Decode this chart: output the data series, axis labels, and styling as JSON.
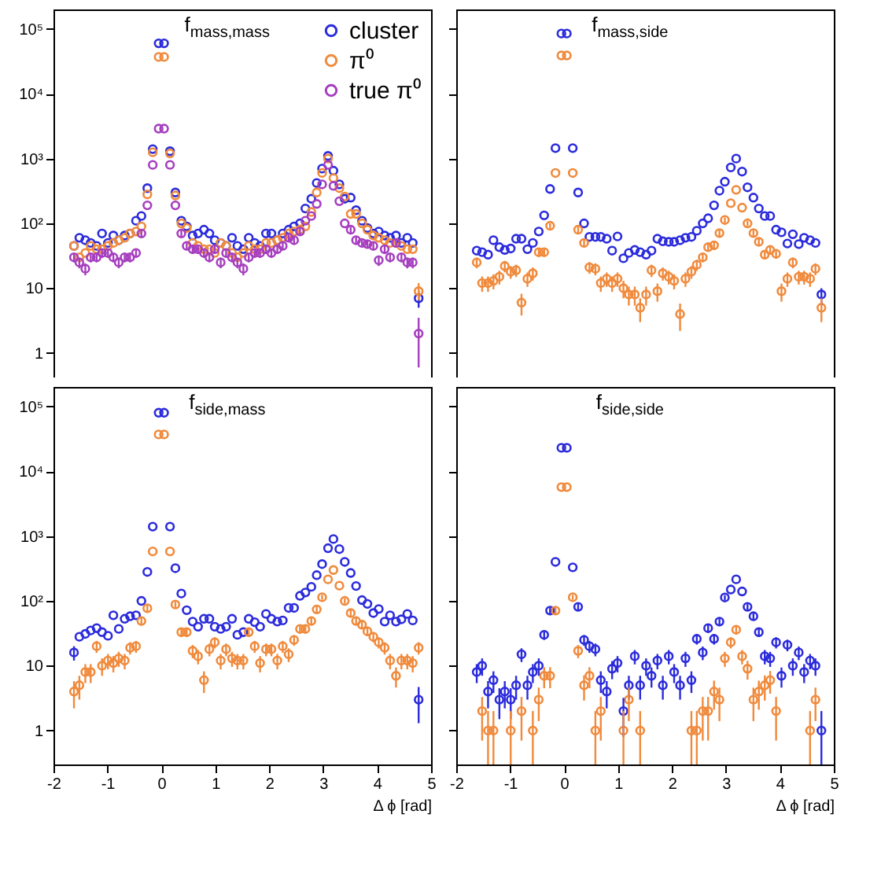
{
  "chart_data": [
    {
      "type": "scatter",
      "title": "f$_{mass,mass}$",
      "marker": "circle",
      "log": true,
      "legend": "top right",
      "tick_labels": "y",
      "xlim": [
        -2,
        5
      ],
      "xticks": [
        -2,
        -1,
        0,
        1,
        2,
        3,
        4,
        5
      ],
      "ylim": [
        0.3,
        200000
      ],
      "yticks": [
        {
          "value": 1,
          "label": "1"
        },
        {
          "value": 10,
          "label": "10"
        },
        {
          "value": 100,
          "label": "10²"
        },
        {
          "value": 1000,
          "label": "10³"
        },
        {
          "value": 10000,
          "label": "10⁴"
        },
        {
          "value": 100000,
          "label": "10⁵"
        }
      ],
      "x": [
        -1.62,
        -1.52,
        -1.41,
        -1.31,
        -1.2,
        -1.1,
        -0.99,
        -0.89,
        -0.79,
        -0.68,
        -0.58,
        -0.47,
        -0.37,
        -0.26,
        -0.16,
        -0.05,
        0.05,
        0.16,
        0.26,
        0.37,
        0.47,
        0.58,
        0.68,
        0.79,
        0.89,
        0.99,
        1.1,
        1.2,
        1.31,
        1.41,
        1.52,
        1.62,
        1.73,
        1.83,
        1.94,
        2.04,
        2.15,
        2.25,
        2.36,
        2.46,
        2.57,
        2.67,
        2.78,
        2.88,
        2.98,
        3.09,
        3.19,
        3.3,
        3.4,
        3.51,
        3.61,
        3.72,
        3.82,
        3.93,
        4.03,
        4.14,
        4.24,
        4.35,
        4.45,
        4.56,
        4.66,
        4.77
      ],
      "series": [
        {
          "name": "cluster",
          "color": "#2b2bdc",
          "values": [
            45,
            60,
            55,
            50,
            45,
            70,
            50,
            65,
            55,
            65,
            70,
            110,
            130,
            350,
            1400,
            60000,
            60000,
            1300,
            300,
            110,
            90,
            65,
            70,
            80,
            70,
            55,
            50,
            45,
            60,
            45,
            40,
            60,
            50,
            45,
            70,
            70,
            55,
            70,
            80,
            90,
            100,
            170,
            240,
            420,
            700,
            1100,
            650,
            400,
            240,
            250,
            160,
            110,
            85,
            70,
            75,
            65,
            60,
            65,
            50,
            60,
            50,
            7
          ],
          "errors": [
            null,
            null,
            null,
            null,
            null,
            null,
            null,
            null,
            null,
            null,
            null,
            null,
            null,
            null,
            null,
            null,
            null,
            null,
            null,
            null,
            null,
            null,
            null,
            null,
            null,
            null,
            null,
            null,
            null,
            null,
            null,
            null,
            null,
            null,
            null,
            null,
            null,
            null,
            null,
            null,
            null,
            null,
            null,
            null,
            null,
            null,
            null,
            null,
            null,
            null,
            null,
            null,
            null,
            null,
            null,
            null,
            null,
            null,
            null,
            null,
            null,
            [
              5,
              9
            ]
          ]
        },
        {
          "name": "π⁰",
          "color": "#f08a3c",
          "values": [
            45,
            30,
            35,
            45,
            40,
            40,
            45,
            50,
            55,
            60,
            70,
            75,
            90,
            280,
            1250,
            37000,
            37000,
            1200,
            270,
            100,
            85,
            50,
            45,
            40,
            40,
            35,
            50,
            45,
            35,
            30,
            35,
            45,
            40,
            40,
            50,
            50,
            55,
            60,
            70,
            75,
            80,
            90,
            150,
            300,
            600,
            1000,
            500,
            350,
            260,
            140,
            140,
            100,
            80,
            65,
            60,
            55,
            50,
            50,
            45,
            40,
            40,
            9
          ],
          "errors": [
            null,
            null,
            null,
            null,
            null,
            null,
            null,
            null,
            null,
            null,
            null,
            null,
            null,
            null,
            null,
            null,
            null,
            null,
            null,
            null,
            null,
            null,
            null,
            null,
            null,
            null,
            null,
            null,
            null,
            null,
            null,
            null,
            null,
            null,
            null,
            null,
            null,
            null,
            null,
            null,
            null,
            null,
            null,
            null,
            null,
            null,
            null,
            null,
            null,
            null,
            null,
            null,
            null,
            null,
            null,
            null,
            null,
            null,
            null,
            null,
            null,
            [
              6.5,
              12
            ]
          ]
        },
        {
          "name": "true π⁰",
          "color": "#a63fbf",
          "values": [
            30,
            25,
            20,
            30,
            30,
            35,
            35,
            30,
            25,
            30,
            30,
            35,
            70,
            190,
            800,
            2900,
            2900,
            800,
            190,
            70,
            45,
            40,
            40,
            35,
            30,
            40,
            25,
            35,
            30,
            25,
            20,
            30,
            35,
            35,
            40,
            35,
            40,
            45,
            60,
            55,
            75,
            110,
            130,
            200,
            400,
            800,
            380,
            220,
            100,
            80,
            55,
            50,
            48,
            45,
            27,
            40,
            30,
            50,
            30,
            25,
            25,
            2
          ],
          "errors": [
            5,
            4.7,
            4.2,
            5,
            5,
            5.6,
            5.6,
            5,
            4.7,
            5,
            5,
            5.6,
            8,
            null,
            null,
            null,
            null,
            null,
            null,
            8,
            6.4,
            6,
            6,
            5.6,
            5,
            6,
            4.7,
            5.6,
            5,
            4.7,
            4.2,
            5,
            5.6,
            5.6,
            6,
            5.6,
            6,
            6.4,
            7,
            7,
            8,
            null,
            null,
            null,
            null,
            null,
            null,
            null,
            null,
            8.5,
            7,
            6.7,
            6.5,
            6.4,
            5,
            6,
            5,
            6.7,
            5,
            4.7,
            4.7,
            [
              0.6,
              3.5
            ]
          ]
        }
      ]
    },
    {
      "type": "scatter",
      "title": "f$_{mass,side}$",
      "marker": "circle",
      "log": true,
      "tick_labels": false,
      "xlim": [
        -2,
        5
      ],
      "xticks": [
        -2,
        -1,
        0,
        1,
        2,
        3,
        4,
        5
      ],
      "ylim": [
        0.3,
        200000
      ],
      "yticks": [
        1,
        10,
        100,
        1000,
        10000,
        100000
      ],
      "x": [
        -1.62,
        -1.52,
        -1.41,
        -1.31,
        -1.2,
        -1.1,
        -0.99,
        -0.89,
        -0.79,
        -0.68,
        -0.58,
        -0.47,
        -0.37,
        -0.26,
        -0.16,
        -0.05,
        0.05,
        0.16,
        0.26,
        0.37,
        0.47,
        0.58,
        0.68,
        0.79,
        0.89,
        0.99,
        1.1,
        1.2,
        1.31,
        1.41,
        1.52,
        1.62,
        1.73,
        1.83,
        1.94,
        2.04,
        2.15,
        2.25,
        2.36,
        2.46,
        2.57,
        2.67,
        2.78,
        2.88,
        2.98,
        3.09,
        3.19,
        3.3,
        3.4,
        3.51,
        3.61,
        3.72,
        3.82,
        3.93,
        4.03,
        4.14,
        4.24,
        4.35,
        4.45,
        4.56,
        4.66,
        4.77
      ],
      "series": [
        {
          "color": "#2b2bdc",
          "values": [
            38,
            36,
            33,
            55,
            43,
            39,
            41,
            58,
            58,
            40,
            50,
            75,
            133,
            340,
            1450,
            85000,
            85000,
            1450,
            300,
            100,
            62,
            62,
            62,
            58,
            38,
            63,
            29,
            35,
            39,
            36,
            33,
            38,
            58,
            53,
            52,
            52,
            55,
            60,
            62,
            77,
            100,
            120,
            190,
            320,
            440,
            730,
            1000,
            630,
            360,
            250,
            170,
            130,
            130,
            80,
            73,
            49,
            68,
            48,
            60,
            55,
            50,
            8
          ],
          "errors": [
            null,
            null,
            null,
            null,
            null,
            null,
            null,
            null,
            null,
            null,
            null,
            null,
            null,
            null,
            null,
            null,
            null,
            null,
            null,
            null,
            null,
            null,
            null,
            null,
            null,
            null,
            null,
            null,
            null,
            null,
            null,
            null,
            null,
            null,
            null,
            null,
            null,
            null,
            null,
            null,
            null,
            null,
            null,
            null,
            null,
            null,
            null,
            null,
            null,
            null,
            null,
            null,
            null,
            null,
            null,
            null,
            null,
            null,
            null,
            null,
            null,
            [
              5.5,
              10
            ]
          ]
        },
        {
          "color": "#f08a3c",
          "values": [
            25,
            12,
            12,
            13,
            15,
            22,
            18,
            19,
            6,
            14,
            17,
            36,
            36,
            92,
            600,
            39000,
            39000,
            600,
            80,
            50,
            21,
            20,
            12,
            14,
            12,
            14,
            10,
            8,
            8,
            5,
            8,
            19,
            9,
            17,
            15,
            13,
            4,
            14,
            18,
            23,
            30,
            43,
            46,
            71,
            113,
            205,
            330,
            175,
            100,
            71,
            52,
            33,
            39,
            34,
            9,
            14,
            25,
            15,
            15,
            14,
            20,
            5
          ],
          "errors": [
            4.7,
            3.2,
            3.2,
            3.4,
            3.6,
            4.4,
            4,
            4.1,
            2.2,
            3.5,
            3.9,
            5.6,
            5.6,
            8.9,
            null,
            null,
            null,
            null,
            8.5,
            6.7,
            4.3,
            4.2,
            3.2,
            3.5,
            3.2,
            3.5,
            3,
            2.6,
            2.6,
            2,
            2.6,
            4.1,
            2.8,
            3.9,
            3.6,
            3.4,
            1.8,
            3.5,
            4,
            4.5,
            5,
            6.2,
            6.4,
            8,
            10,
            null,
            null,
            null,
            9,
            8,
            6.8,
            5.3,
            5.9,
            5.4,
            2.8,
            3.5,
            4.7,
            3.6,
            3.6,
            3.5,
            4.2,
            2
          ]
        }
      ]
    },
    {
      "type": "scatter",
      "title": "f$_{side,mass}$",
      "xlabel": "Δ ϕ [rad]",
      "marker": "circle",
      "log": true,
      "xlim": [
        -2,
        5
      ],
      "xticks": [
        -2,
        -1,
        0,
        1,
        2,
        3,
        4,
        5
      ],
      "ylim": [
        0.3,
        200000
      ],
      "yticks": [
        {
          "value": 1,
          "label": "1"
        },
        {
          "value": 10,
          "label": "10"
        },
        {
          "value": 100,
          "label": "10²"
        },
        {
          "value": 1000,
          "label": "10³"
        },
        {
          "value": 10000,
          "label": "10⁴"
        },
        {
          "value": 100000,
          "label": "10⁵"
        }
      ],
      "x": [
        -1.62,
        -1.52,
        -1.41,
        -1.31,
        -1.2,
        -1.1,
        -0.99,
        -0.89,
        -0.79,
        -0.68,
        -0.58,
        -0.47,
        -0.37,
        -0.26,
        -0.16,
        -0.05,
        0.05,
        0.16,
        0.26,
        0.37,
        0.47,
        0.58,
        0.68,
        0.79,
        0.89,
        0.99,
        1.1,
        1.2,
        1.31,
        1.41,
        1.52,
        1.62,
        1.73,
        1.83,
        1.94,
        2.04,
        2.15,
        2.25,
        2.36,
        2.46,
        2.57,
        2.67,
        2.78,
        2.88,
        2.98,
        3.09,
        3.19,
        3.3,
        3.4,
        3.51,
        3.61,
        3.72,
        3.82,
        3.93,
        4.03,
        4.14,
        4.24,
        4.35,
        4.45,
        4.56,
        4.66,
        4.77
      ],
      "series": [
        {
          "color": "#2b2bdc",
          "values": [
            16,
            28,
            31,
            35,
            38,
            33,
            29,
            60,
            37,
            53,
            58,
            60,
            100,
            280,
            1400,
            80000,
            80000,
            1400,
            320,
            130,
            72,
            48,
            40,
            53,
            53,
            40,
            37,
            40,
            53,
            30,
            33,
            53,
            47,
            40,
            63,
            53,
            48,
            50,
            78,
            78,
            120,
            135,
            165,
            250,
            370,
            650,
            900,
            630,
            400,
            270,
            170,
            103,
            90,
            65,
            75,
            48,
            60,
            48,
            52,
            63,
            50,
            3
          ],
          "errors": [
            4,
            null,
            null,
            null,
            null,
            null,
            null,
            null,
            null,
            null,
            null,
            null,
            null,
            null,
            null,
            null,
            null,
            null,
            null,
            null,
            null,
            null,
            null,
            null,
            null,
            null,
            null,
            null,
            null,
            null,
            null,
            null,
            null,
            null,
            null,
            null,
            null,
            null,
            null,
            null,
            null,
            null,
            null,
            null,
            null,
            null,
            null,
            null,
            null,
            null,
            null,
            null,
            null,
            null,
            null,
            null,
            null,
            null,
            null,
            null,
            null,
            [
              1.3,
              4.7
            ]
          ]
        },
        {
          "color": "#f08a3c",
          "values": [
            4,
            5,
            8,
            8,
            20,
            10,
            12,
            11,
            13,
            12,
            19,
            20,
            49,
            77,
            580,
            37000,
            37000,
            580,
            88,
            33,
            33,
            17,
            14,
            6,
            18,
            23,
            12,
            18,
            13,
            12,
            12,
            33,
            20,
            11,
            18,
            18,
            12,
            20,
            15,
            25,
            37,
            37,
            49,
            74,
            114,
            215,
            300,
            172,
            100,
            65,
            49,
            43,
            34,
            28,
            23,
            19,
            12,
            7,
            12,
            12,
            11,
            19
          ],
          "errors": [
            1.8,
            2,
            2.6,
            2.6,
            4.2,
            3,
            3.2,
            3.1,
            3.4,
            3.2,
            4.1,
            4.2,
            6.6,
            8.3,
            null,
            null,
            null,
            null,
            8.9,
            5.3,
            5.3,
            3.9,
            3.5,
            2.2,
            4,
            4.5,
            3.2,
            4,
            3.4,
            3.2,
            3.2,
            5.3,
            4.2,
            3.1,
            4,
            4,
            3.2,
            4.2,
            3.6,
            4.7,
            5.7,
            5.7,
            6.6,
            8.2,
            10,
            null,
            null,
            null,
            9,
            7.6,
            6.6,
            6.2,
            5.4,
            5,
            4.5,
            4.1,
            3.2,
            2.4,
            3.2,
            3.2,
            3.1,
            4.1
          ]
        }
      ]
    },
    {
      "type": "scatter",
      "title": "f$_{side,side}$",
      "xlabel": "Δ ϕ [rad]",
      "marker": "circle",
      "log": true,
      "tick_labels": "x",
      "xlim": [
        -2,
        5
      ],
      "xticks": [
        -2,
        -1,
        0,
        1,
        2,
        3,
        4,
        5
      ],
      "ylim": [
        0.3,
        200000
      ],
      "yticks": [
        1,
        10,
        100,
        1000,
        10000,
        100000
      ],
      "x": [
        -1.62,
        -1.52,
        -1.41,
        -1.31,
        -1.2,
        -1.1,
        -0.99,
        -0.89,
        -0.79,
        -0.68,
        -0.58,
        -0.47,
        -0.37,
        -0.26,
        -0.16,
        -0.05,
        0.05,
        0.16,
        0.26,
        0.37,
        0.47,
        0.58,
        0.68,
        0.79,
        0.89,
        0.99,
        1.1,
        1.2,
        1.31,
        1.41,
        1.52,
        1.62,
        1.73,
        1.83,
        1.94,
        2.04,
        2.15,
        2.25,
        2.36,
        2.46,
        2.57,
        2.67,
        2.78,
        2.88,
        2.98,
        3.09,
        3.19,
        3.3,
        3.4,
        3.51,
        3.61,
        3.72,
        3.82,
        3.93,
        4.03,
        4.14,
        4.24,
        4.35,
        4.45,
        4.56,
        4.66,
        4.77
      ],
      "series": [
        {
          "color": "#2b2bdc",
          "values": [
            8,
            10,
            4,
            6,
            3,
            4,
            3,
            5,
            15,
            5,
            8,
            10,
            30,
            71,
            400,
            23000,
            23000,
            330,
            81,
            25,
            20,
            18,
            6,
            4,
            9,
            11,
            2,
            5,
            14,
            5,
            10,
            7,
            12,
            5,
            14,
            8,
            5,
            13,
            6,
            26,
            16,
            38,
            26,
            48,
            113,
            150,
            215,
            140,
            81,
            58,
            33,
            14,
            13,
            23,
            7,
            21,
            10,
            16,
            8,
            12,
            10,
            1
          ],
          "errors": [
            2.6,
            3,
            1.8,
            2.2,
            1.5,
            1.8,
            1.5,
            2,
            3.6,
            2,
            2.6,
            3,
            5,
            8,
            null,
            null,
            null,
            null,
            8.5,
            4.7,
            4.2,
            4,
            2.2,
            1.8,
            2.8,
            3.1,
            1.2,
            2,
            3.5,
            2,
            3,
            2.4,
            3.2,
            2,
            3.5,
            2.6,
            2,
            3.4,
            2.2,
            4.8,
            3.8,
            5.8,
            4.8,
            6.5,
            10,
            null,
            null,
            null,
            8.5,
            7,
            5.3,
            3.5,
            3.4,
            4.5,
            2.4,
            4.3,
            3,
            3.8,
            2.6,
            3.2,
            3,
            [
              0.3,
              2
            ]
          ]
        },
        {
          "color": "#f08a3c",
          "values": [
            null,
            2,
            1,
            1,
            null,
            null,
            1,
            null,
            2,
            null,
            1,
            3,
            7,
            7,
            71,
            5700,
            5700,
            114,
            17,
            5,
            7,
            1,
            2,
            null,
            null,
            null,
            1,
            3,
            null,
            1,
            null,
            null,
            null,
            null,
            null,
            null,
            null,
            null,
            1,
            1,
            2,
            2,
            4,
            3,
            13,
            23,
            36,
            14,
            9,
            3,
            4,
            5,
            6,
            2,
            null,
            null,
            null,
            null,
            null,
            1,
            3,
            null
          ],
          "errors": [
            null,
            1.3,
            [
              0.3,
              2
            ],
            [
              0.3,
              2
            ],
            null,
            null,
            [
              0.3,
              2
            ],
            null,
            1.3,
            null,
            [
              0.3,
              2
            ],
            1.6,
            2.5,
            2.5,
            8,
            null,
            null,
            10,
            3.9,
            2.1,
            2.5,
            [
              0.3,
              2
            ],
            1.3,
            null,
            null,
            null,
            [
              0.3,
              2
            ],
            1.6,
            null,
            [
              0.3,
              2
            ],
            null,
            null,
            null,
            null,
            null,
            null,
            null,
            null,
            [
              0.3,
              2
            ],
            [
              0.3,
              2
            ],
            1.3,
            1.3,
            1.9,
            1.6,
            3.4,
            4.5,
            5.6,
            3.5,
            2.9,
            1.6,
            1.9,
            2.1,
            2.3,
            1.3,
            null,
            null,
            null,
            null,
            null,
            [
              0.3,
              2
            ],
            1.6,
            null
          ]
        }
      ]
    }
  ]
}
